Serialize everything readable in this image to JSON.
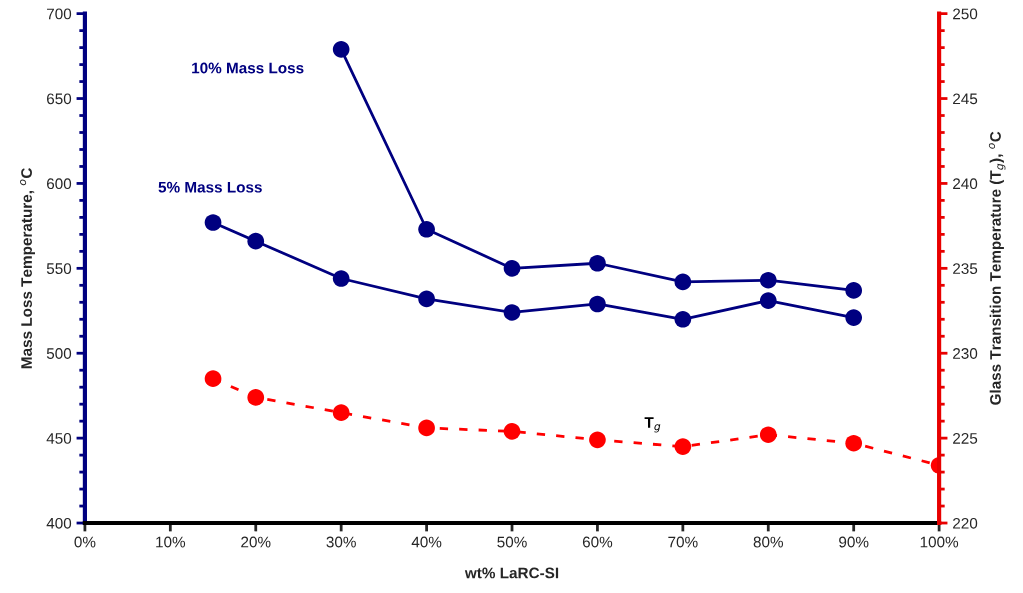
{
  "chart_data": {
    "type": "line",
    "xlabel": "wt% LaRC-SI",
    "ylabel": "Mass Loss Temperature, $^{o}$C",
    "y2label": "Glass Transition Temperature (T$_{g}$), $^{o}$C",
    "series": [
      {
        "name": "10% Mass Loss",
        "color": "#000080",
        "line_style": "solid",
        "x": [
          30,
          40,
          50,
          60,
          70,
          80,
          90
        ],
        "values": [
          679,
          573,
          550,
          553,
          542,
          543,
          537
        ]
      },
      {
        "name": "5% Mass Loss",
        "color": "#000080",
        "line_style": "solid",
        "x": [
          15,
          20,
          30,
          40,
          50,
          60,
          70,
          80,
          90
        ],
        "values": [
          577,
          566,
          544,
          532,
          524,
          529,
          520,
          531,
          521
        ]
      },
      {
        "name": "T$_{g}$",
        "color": "#ff0000",
        "line_style": "dashed",
        "axis": "y2",
        "x": [
          15,
          20,
          30,
          40,
          50,
          60,
          70,
          80,
          90,
          100
        ],
        "values": [
          228.5,
          227.4,
          226.5,
          225.6,
          225.4,
          224.9,
          224.5,
          225.2,
          224.7,
          223.4
        ]
      }
    ],
    "marker": "circle",
    "grid": false,
    "legend": false,
    "xlim": [
      0,
      100
    ],
    "xticks": [
      {
        "value": 0,
        "label": "0%"
      },
      {
        "value": 10,
        "label": "10%"
      },
      {
        "value": 20,
        "label": "20%"
      },
      {
        "value": 30,
        "label": "30%"
      },
      {
        "value": 40,
        "label": "40%"
      },
      {
        "value": 50,
        "label": "50%"
      },
      {
        "value": 60,
        "label": "60%"
      },
      {
        "value": 70,
        "label": "70%"
      },
      {
        "value": 80,
        "label": "80%"
      },
      {
        "value": 90,
        "label": "90%"
      },
      {
        "value": 100,
        "label": "100%"
      }
    ],
    "ylim": [
      400,
      700
    ],
    "yticks": [
      400,
      450,
      500,
      550,
      600,
      650,
      700
    ],
    "y2lim": [
      220,
      250
    ],
    "y2ticks": [
      220,
      225,
      230,
      235,
      240,
      245,
      250
    ]
  }
}
